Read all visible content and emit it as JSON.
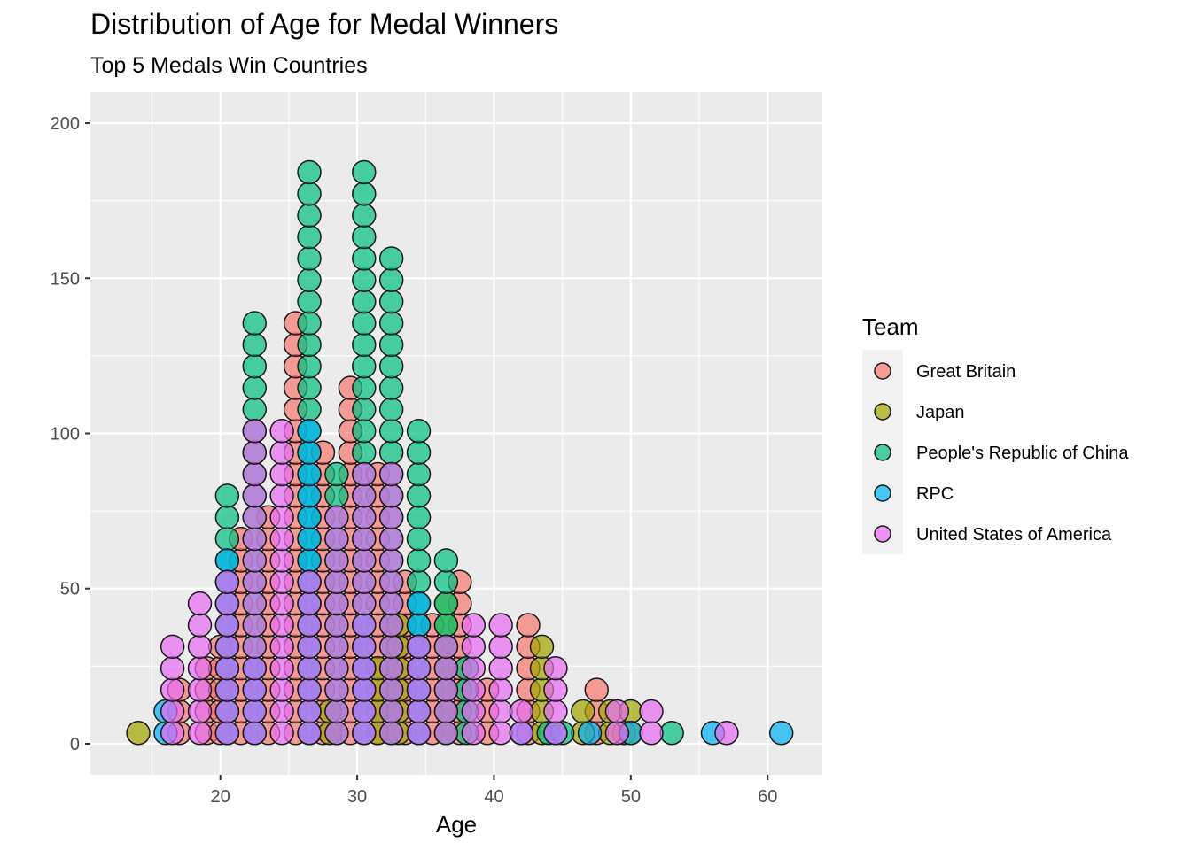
{
  "chart_data": {
    "type": "dotplot",
    "title": "Distribution of Age for Medal Winners",
    "subtitle": "Top 5 Medals Win Countries",
    "xlabel": "Age",
    "ylabel": "",
    "xlim": [
      10.5,
      64
    ],
    "ylim": [
      -10,
      210
    ],
    "x_ticks": [
      20,
      30,
      40,
      50,
      60
    ],
    "y_ticks": [
      0,
      50,
      100,
      150,
      200
    ],
    "grid": true,
    "dot_step": 6.95,
    "legend": {
      "title": "Team",
      "position": "right",
      "entries": [
        {
          "name": "Great Britain",
          "color": "#F8766D"
        },
        {
          "name": "Japan",
          "color": "#A3A500"
        },
        {
          "name": "People's Republic of China",
          "color": "#00BF7D"
        },
        {
          "name": "RPC",
          "color": "#00B0F6"
        },
        {
          "name": "United States of America",
          "color": "#E76BF3"
        }
      ]
    },
    "series": [
      {
        "name": "Great Britain",
        "color": "#F8766D",
        "stacks": [
          {
            "x": 17.0,
            "count": 3
          },
          {
            "x": 19.0,
            "count": 4
          },
          {
            "x": 20.0,
            "count": 5
          },
          {
            "x": 21.5,
            "count": 10
          },
          {
            "x": 23.5,
            "count": 11
          },
          {
            "x": 25.5,
            "count": 20
          },
          {
            "x": 27.5,
            "count": 14
          },
          {
            "x": 29.5,
            "count": 17
          },
          {
            "x": 31.5,
            "count": 13
          },
          {
            "x": 33.5,
            "count": 8
          },
          {
            "x": 35.5,
            "count": 6
          },
          {
            "x": 37.5,
            "count": 8
          },
          {
            "x": 39.5,
            "count": 3
          },
          {
            "x": 42.5,
            "count": 6
          },
          {
            "x": 47.5,
            "count": 3
          },
          {
            "x": 49.5,
            "count": 1
          }
        ]
      },
      {
        "name": "Japan",
        "color": "#A3A500",
        "stacks": [
          {
            "x": 14.0,
            "count": 1
          },
          {
            "x": 28.0,
            "count": 2
          },
          {
            "x": 31.5,
            "count": 4
          },
          {
            "x": 33.0,
            "count": 6
          },
          {
            "x": 36.5,
            "count": 7
          },
          {
            "x": 43.5,
            "count": 5
          },
          {
            "x": 46.5,
            "count": 2
          },
          {
            "x": 48.5,
            "count": 2
          },
          {
            "x": 50.0,
            "count": 2
          }
        ]
      },
      {
        "name": "People's Republic of China",
        "color": "#00BF7D",
        "stacks": [
          {
            "x": 20.5,
            "count": 12
          },
          {
            "x": 22.5,
            "count": 20
          },
          {
            "x": 26.5,
            "count": 27
          },
          {
            "x": 28.5,
            "count": 13
          },
          {
            "x": 30.5,
            "count": 27
          },
          {
            "x": 32.5,
            "count": 23
          },
          {
            "x": 34.5,
            "count": 15
          },
          {
            "x": 36.5,
            "count": 9
          },
          {
            "x": 38.0,
            "count": 4
          },
          {
            "x": 44.0,
            "count": 1
          },
          {
            "x": 45.0,
            "count": 1
          },
          {
            "x": 53.0,
            "count": 1
          }
        ]
      },
      {
        "name": "RPC",
        "color": "#00B0F6",
        "stacks": [
          {
            "x": 16.0,
            "count": 2
          },
          {
            "x": 20.5,
            "count": 9
          },
          {
            "x": 22.5,
            "count": 4
          },
          {
            "x": 26.5,
            "count": 15
          },
          {
            "x": 30.5,
            "count": 6
          },
          {
            "x": 34.5,
            "count": 7
          },
          {
            "x": 42.0,
            "count": 1
          },
          {
            "x": 44.5,
            "count": 1
          },
          {
            "x": 47.0,
            "count": 1
          },
          {
            "x": 50.0,
            "count": 1
          },
          {
            "x": 56.0,
            "count": 1
          },
          {
            "x": 61.0,
            "count": 1
          }
        ]
      },
      {
        "name": "United States of America",
        "color": "#E76BF3",
        "stacks": [
          {
            "x": 16.5,
            "count": 5
          },
          {
            "x": 18.5,
            "count": 7
          },
          {
            "x": 20.5,
            "count": 8
          },
          {
            "x": 22.5,
            "count": 15
          },
          {
            "x": 24.5,
            "count": 15
          },
          {
            "x": 26.5,
            "count": 8
          },
          {
            "x": 28.5,
            "count": 11
          },
          {
            "x": 30.5,
            "count": 13
          },
          {
            "x": 32.5,
            "count": 13
          },
          {
            "x": 34.5,
            "count": 5
          },
          {
            "x": 36.5,
            "count": 5
          },
          {
            "x": 38.5,
            "count": 6
          },
          {
            "x": 40.5,
            "count": 6
          },
          {
            "x": 42.0,
            "count": 2
          },
          {
            "x": 44.5,
            "count": 4
          },
          {
            "x": 49.0,
            "count": 2
          },
          {
            "x": 51.5,
            "count": 2
          },
          {
            "x": 57.0,
            "count": 1
          }
        ]
      }
    ]
  }
}
